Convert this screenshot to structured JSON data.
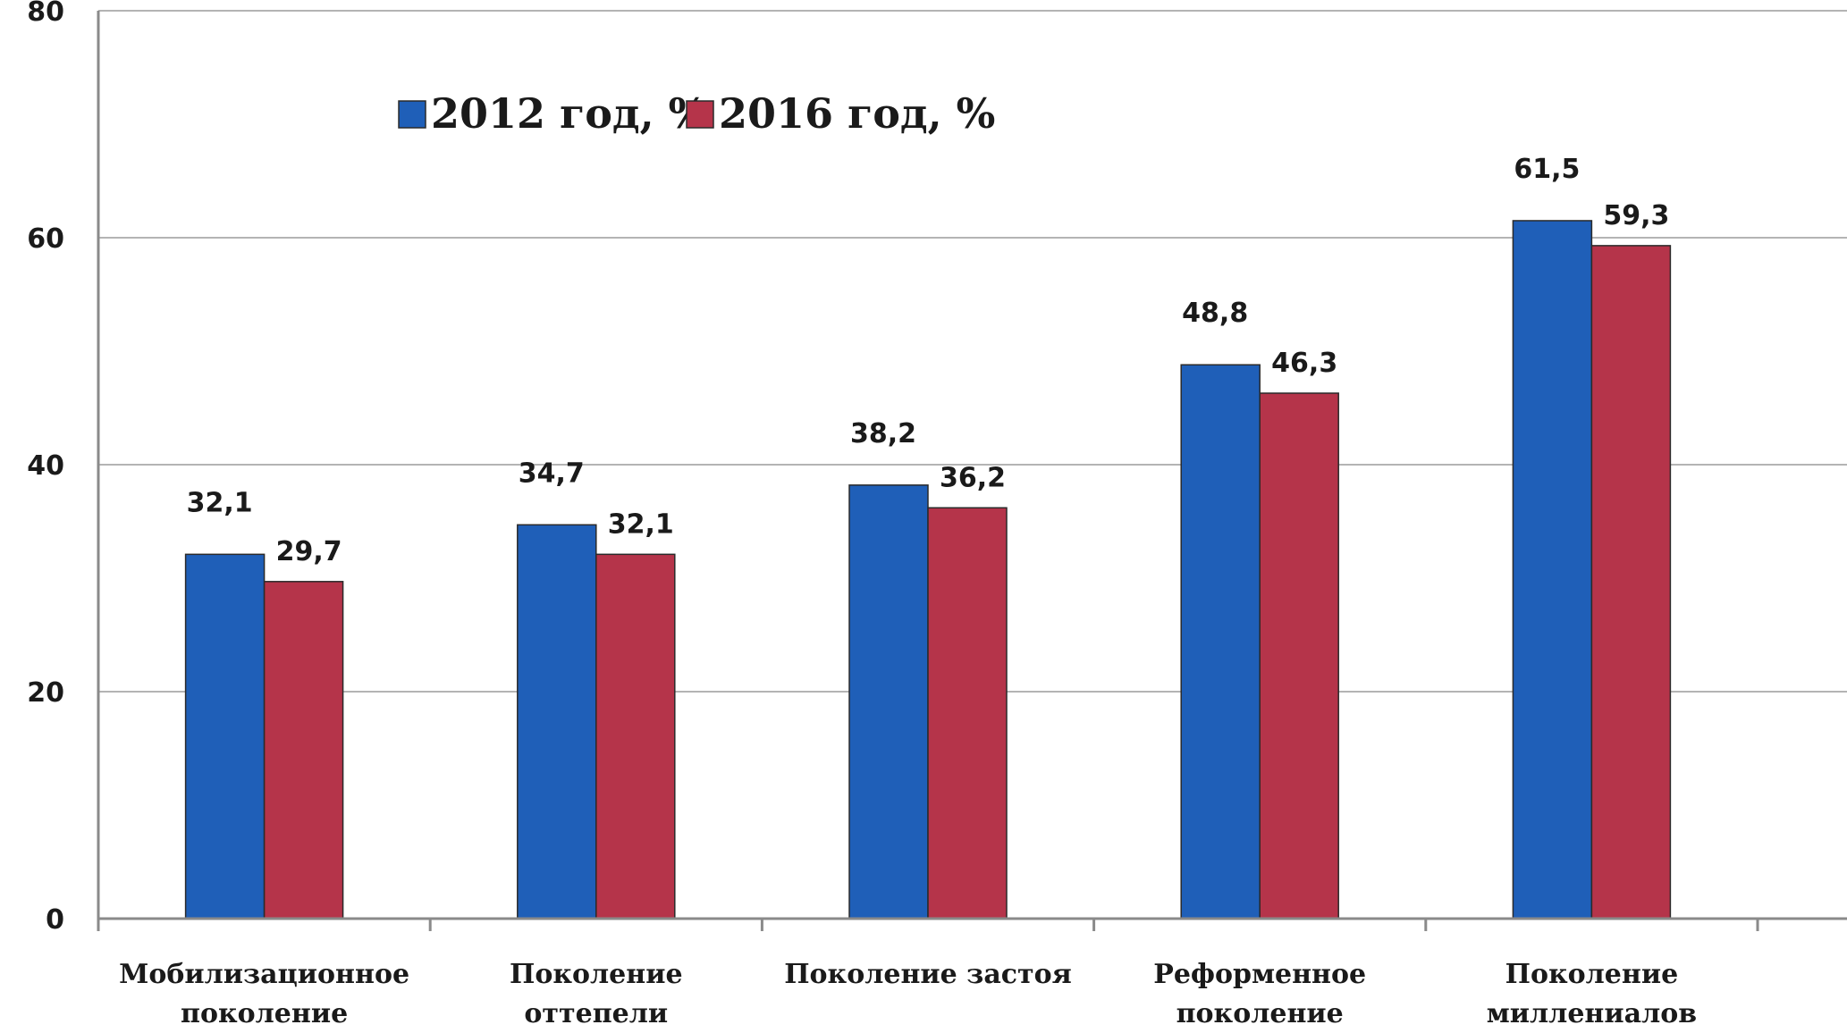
{
  "chart_data": {
    "type": "bar",
    "categories": [
      [
        "Мобилизационное",
        "поколение"
      ],
      [
        "Поколение",
        "оттепели"
      ],
      [
        "Поколение застоя"
      ],
      [
        "Реформенное",
        "поколение"
      ],
      [
        "Поколение",
        "миллениалов"
      ]
    ],
    "series": [
      {
        "name": "2012 год, %",
        "color": "#1f5fb8",
        "values": [
          32.1,
          34.7,
          38.2,
          48.8,
          61.5
        ],
        "labels": [
          "32,1",
          "34,7",
          "38,2",
          "48,8",
          "61,5"
        ]
      },
      {
        "name": "2016 год, %",
        "color": "#b5344a",
        "values": [
          29.7,
          32.1,
          36.2,
          46.3,
          59.3
        ],
        "labels": [
          "29,7",
          "32,1",
          "36,2",
          "46,3",
          "59,3"
        ]
      }
    ],
    "title": "",
    "xlabel": "",
    "ylabel": "",
    "ylim": [
      0,
      80
    ],
    "yticks": [
      "0",
      "20",
      "40",
      "60",
      "80"
    ],
    "grid": true,
    "legend_position": "top-left"
  }
}
